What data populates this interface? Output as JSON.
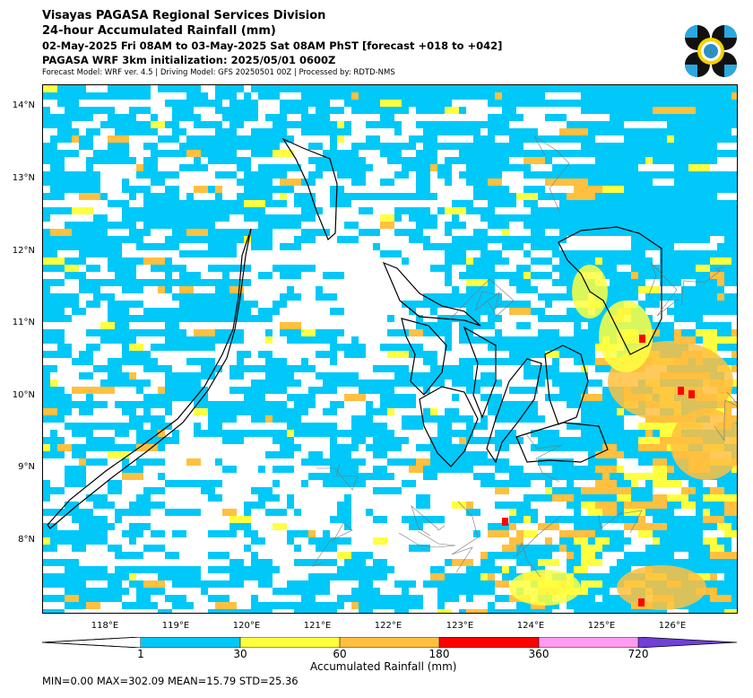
{
  "header": {
    "line1": "Visayas PAGASA Regional Services Division",
    "line2": "24-hour Accumulated Rainfall (mm)",
    "line3": "02-May-2025 Fri 08AM to 03-May-2025 Sat 08AM PhST [forecast +018 to +042]",
    "line4": "PAGASA WRF 3km initialization: 2025/05/01 0600Z",
    "line5": "Forecast Model: WRF ver. 4.5 | Driving Model: GFS 20250501 00Z | Processed by: RDTD-NMS"
  },
  "map": {
    "lat_labels": [
      "14°N",
      "13°N",
      "12°N",
      "11°N",
      "10°N",
      "9°N",
      "8°N"
    ],
    "lon_labels": [
      "118°E",
      "119°E",
      "120°E",
      "121°E",
      "122°E",
      "123°E",
      "124°E",
      "125°E",
      "126°E"
    ],
    "lat_range": [
      7.0,
      14.3
    ],
    "lon_range": [
      117.0,
      126.6
    ]
  },
  "colorbar": {
    "ticks": [
      "1",
      "30",
      "60",
      "180",
      "360",
      "720"
    ],
    "label": "Accumulated Rainfall (mm)",
    "colors": {
      "c1_30": "#00c8f8",
      "c30_60": "#ffff40",
      "c60_180": "#ffc040",
      "c180_360": "#ff0000",
      "c360_720": "#ff9cf2",
      "c720_up": "#7040d8"
    }
  },
  "stats": {
    "text": "MIN=0.00   MAX=302.09   MEAN=15.79   STD=25.36"
  }
}
